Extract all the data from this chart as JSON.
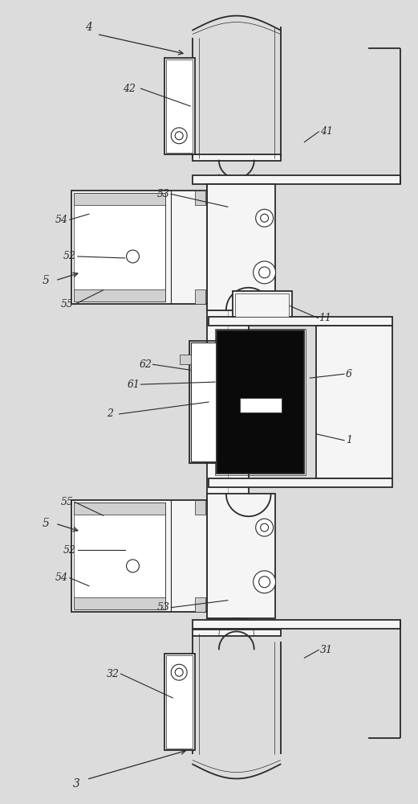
{
  "bg_color": "#dcdcdc",
  "line_color": "#2a2a2a",
  "fill_light": "#f5f5f5",
  "fill_white": "#ffffff",
  "fill_black": "#0a0a0a",
  "fill_gray": "#d0d0d0",
  "figsize": [
    5.21,
    10.0
  ],
  "dpi": 100
}
